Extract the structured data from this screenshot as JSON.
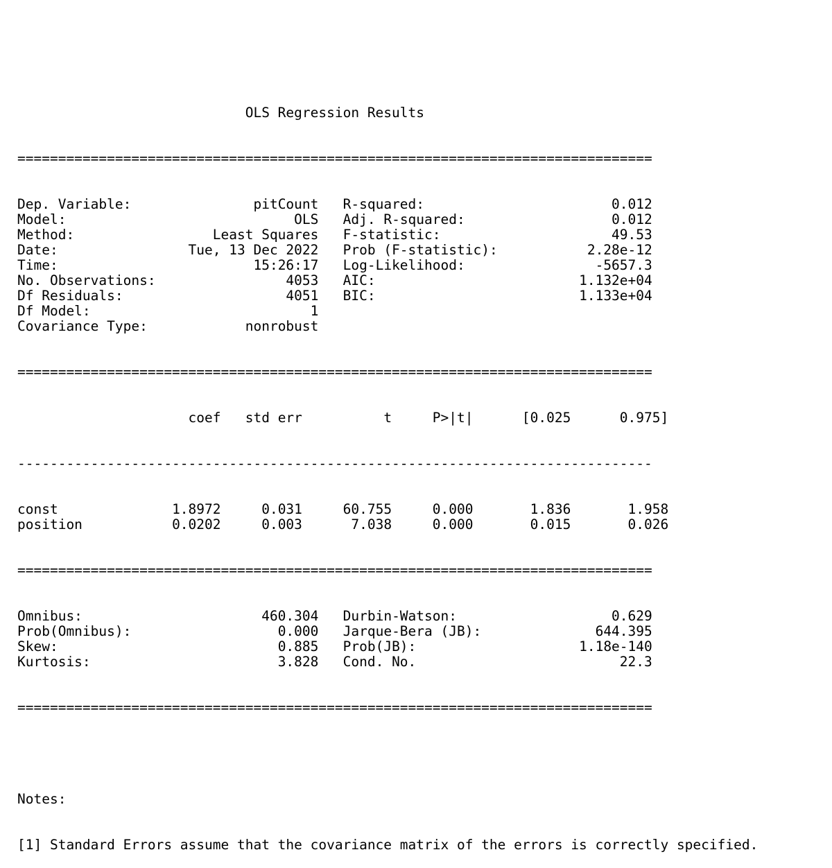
{
  "title": "OLS Regression Results",
  "rule_double": "==============================================================================",
  "rule_single": "------------------------------------------------------------------------------",
  "top_table": [
    {
      "label": "Dep. Variable:",
      "value": "pitCount",
      "label2": "R-squared:",
      "value2": "0.012"
    },
    {
      "label": "Model:",
      "value": "OLS",
      "label2": "Adj. R-squared:",
      "value2": "0.012"
    },
    {
      "label": "Method:",
      "value": "Least Squares",
      "label2": "F-statistic:",
      "value2": "49.53"
    },
    {
      "label": "Date:",
      "value": "Tue, 13 Dec 2022",
      "label2": "Prob (F-statistic):",
      "value2": "2.28e-12"
    },
    {
      "label": "Time:",
      "value": "15:26:17",
      "label2": "Log-Likelihood:",
      "value2": "-5657.3"
    },
    {
      "label": "No. Observations:",
      "value": "4053",
      "label2": "AIC:",
      "value2": "1.132e+04"
    },
    {
      "label": "Df Residuals:",
      "value": "4051",
      "label2": "BIC:",
      "value2": "1.133e+04"
    },
    {
      "label": "Df Model:",
      "value": "1",
      "label2": "",
      "value2": ""
    },
    {
      "label": "Covariance Type:",
      "value": "nonrobust",
      "label2": "",
      "value2": ""
    }
  ],
  "coef_table": {
    "headers": [
      "coef",
      "std err",
      "t",
      "P>|t|",
      "[0.025",
      "0.975]"
    ],
    "rows": [
      {
        "name": "const",
        "cells": [
          "1.8972",
          "0.031",
          "60.755",
          "0.000",
          "1.836",
          "1.958"
        ]
      },
      {
        "name": "position",
        "cells": [
          "0.0202",
          "0.003",
          "7.038",
          "0.000",
          "0.015",
          "0.026"
        ]
      }
    ]
  },
  "diag_table": [
    {
      "label": "Omnibus:",
      "value": "460.304",
      "label2": "Durbin-Watson:",
      "value2": "0.629"
    },
    {
      "label": "Prob(Omnibus):",
      "value": "0.000",
      "label2": "Jarque-Bera (JB):",
      "value2": "644.395"
    },
    {
      "label": "Skew:",
      "value": "0.885",
      "label2": "Prob(JB):",
      "value2": "1.18e-140"
    },
    {
      "label": "Kurtosis:",
      "value": "3.828",
      "label2": "Cond. No.",
      "value2": "22.3"
    }
  ],
  "notes_heading": "Notes:",
  "notes": [
    "[1] Standard Errors assume that the covariance matrix of the errors is correctly specified."
  ]
}
